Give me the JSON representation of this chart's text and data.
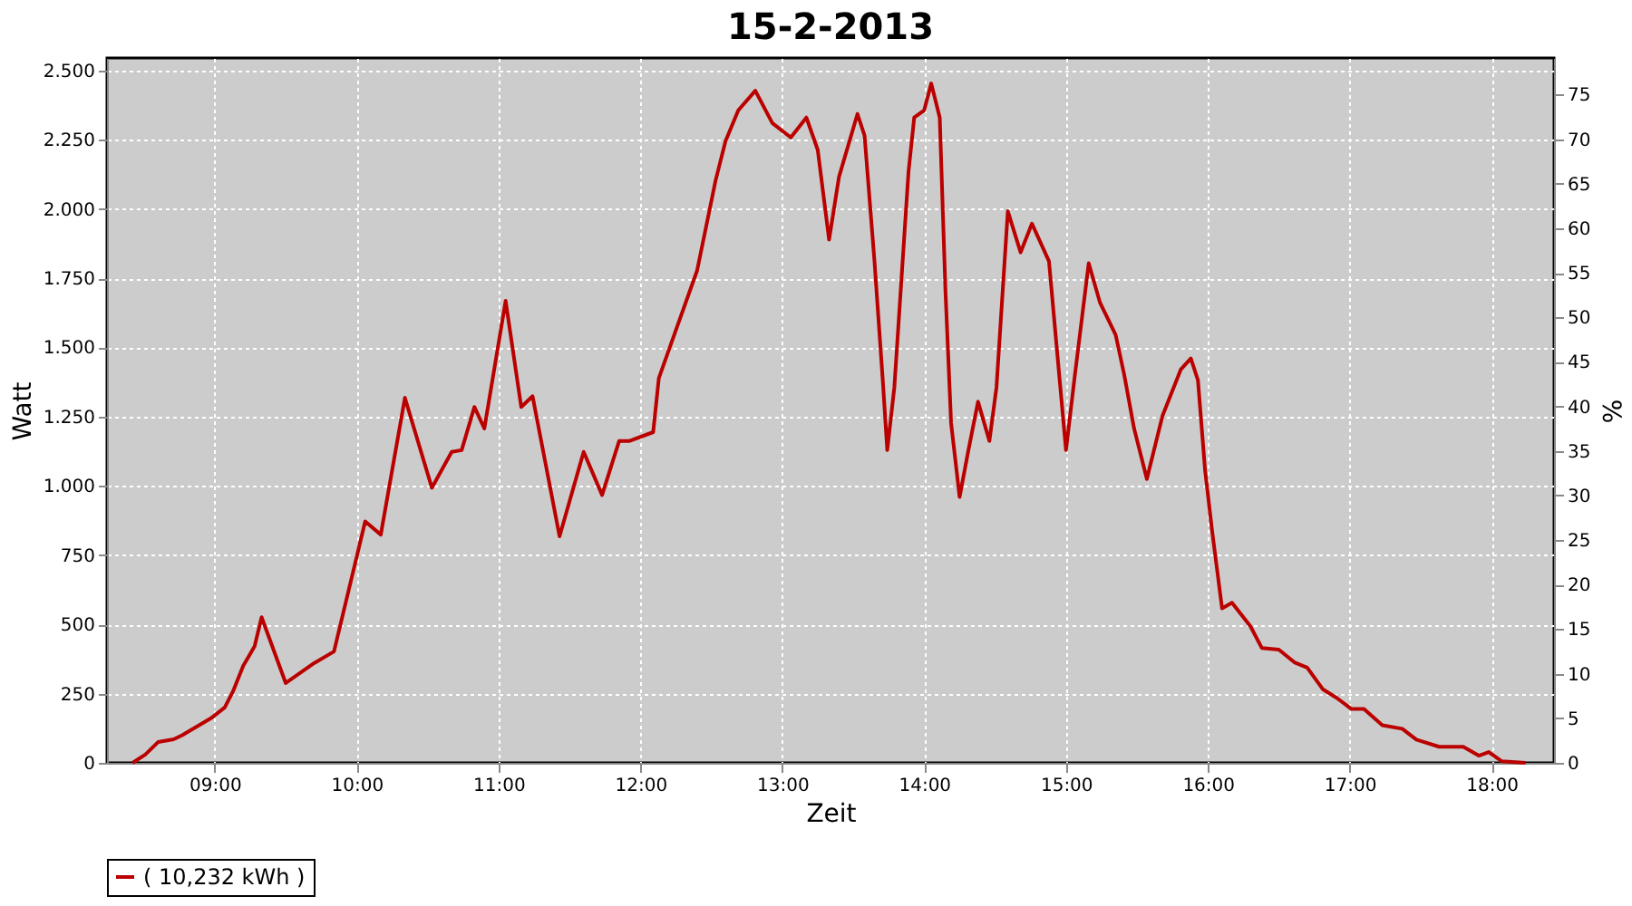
{
  "chart_data": {
    "type": "line",
    "title": "15-2-2013",
    "xlabel": "Zeit",
    "ylabel": "Watt",
    "y2label": "%",
    "xlim": [
      8.24,
      18.44
    ],
    "xticks": [
      {
        "value": 9,
        "label": "09:00"
      },
      {
        "value": 10,
        "label": "10:00"
      },
      {
        "value": 11,
        "label": "11:00"
      },
      {
        "value": 12,
        "label": "12:00"
      },
      {
        "value": 13,
        "label": "13:00"
      },
      {
        "value": 14,
        "label": "14:00"
      },
      {
        "value": 15,
        "label": "15:00"
      },
      {
        "value": 16,
        "label": "16:00"
      },
      {
        "value": 17,
        "label": "17:00"
      },
      {
        "value": 18,
        "label": "18:00"
      }
    ],
    "ylim": [
      0,
      2545
    ],
    "yticks": [
      0,
      250,
      500,
      750,
      {
        "value": 1000,
        "label": "1.000"
      },
      {
        "value": 1250,
        "label": "1.250"
      },
      {
        "value": 1500,
        "label": "1.500"
      },
      {
        "value": 1750,
        "label": "1.750"
      },
      {
        "value": 2000,
        "label": "2.000"
      },
      {
        "value": 2250,
        "label": "2.250"
      },
      {
        "value": 2500,
        "label": "2.500"
      }
    ],
    "y2lim": [
      0,
      79.1
    ],
    "y2ticks": [
      0,
      5,
      10,
      15,
      20,
      25,
      30,
      35,
      40,
      45,
      50,
      55,
      60,
      65,
      70,
      75
    ],
    "grid": true,
    "legend": "bottom",
    "marker": "none",
    "line_style": "solid",
    "series": [
      {
        "name": "( 10,232 kWh )",
        "color": "#bb0000",
        "x": [
          8.42,
          8.51,
          8.6,
          8.71,
          8.77,
          8.87,
          8.97,
          9.07,
          9.13,
          9.2,
          9.28,
          9.33,
          9.5,
          9.7,
          9.84,
          10.06,
          10.17,
          10.34,
          10.53,
          10.67,
          10.74,
          10.83,
          10.9,
          11.05,
          11.16,
          11.24,
          11.43,
          11.6,
          11.73,
          11.85,
          11.92,
          12.09,
          12.13,
          12.4,
          12.53,
          12.6,
          12.69,
          12.81,
          12.93,
          13.06,
          13.17,
          13.25,
          13.33,
          13.4,
          13.53,
          13.58,
          13.65,
          13.71,
          13.74,
          13.79,
          13.89,
          13.93,
          14.0,
          14.05,
          14.11,
          14.15,
          14.19,
          14.25,
          14.31,
          14.38,
          14.46,
          14.51,
          14.59,
          14.68,
          14.76,
          14.88,
          14.96,
          15.0,
          15.06,
          15.16,
          15.24,
          15.35,
          15.41,
          15.48,
          15.57,
          15.68,
          15.81,
          15.88,
          15.93,
          15.98,
          16.03,
          16.1,
          16.17,
          16.3,
          16.38,
          16.5,
          16.61,
          16.7,
          16.81,
          16.91,
          17.01,
          17.1,
          17.23,
          17.37,
          17.47,
          17.63,
          17.8,
          17.91,
          17.98,
          18.07,
          18.24
        ],
        "values": [
          0,
          30,
          75,
          85,
          100,
          130,
          160,
          200,
          260,
          350,
          420,
          526,
          288,
          360,
          402,
          872,
          824,
          1318,
          993,
          1123,
          1129,
          1285,
          1207,
          1668,
          1285,
          1324,
          818,
          1123,
          967,
          1162,
          1162,
          1194,
          1389,
          1778,
          2103,
          2245,
          2356,
          2427,
          2310,
          2258,
          2330,
          2213,
          1889,
          2116,
          2343,
          2265,
          1811,
          1369,
          1129,
          1356,
          2135,
          2330,
          2356,
          2453,
          2330,
          1707,
          1227,
          960,
          1123,
          1304,
          1162,
          1356,
          1992,
          1843,
          1947,
          1811,
          1356,
          1129,
          1389,
          1804,
          1661,
          1545,
          1402,
          1207,
          1025,
          1253,
          1421,
          1460,
          1382,
          1058,
          837,
          558,
          578,
          493,
          415,
          409,
          363,
          344,
          266,
          234,
          195,
          195,
          136,
          123,
          84,
          58,
          58,
          26,
          39,
          6,
          0
        ]
      }
    ]
  }
}
